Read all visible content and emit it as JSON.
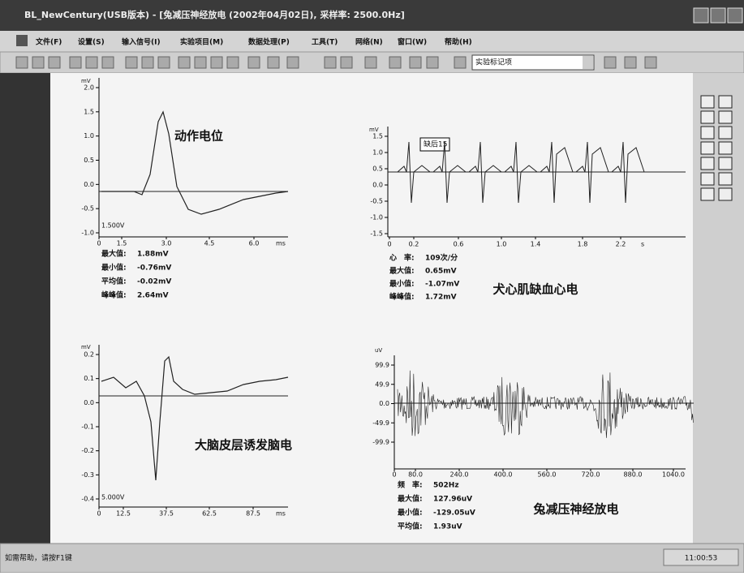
{
  "window": {
    "title": "BL_NewCentury(USB版本) - [兔减压神经放电 (2002年04月02日), 采样率: 2500.0Hz]"
  },
  "menu": [
    "文件(F)",
    "设置(S)",
    "输入信号(I)",
    "实验项目(M)",
    "数据处理(P)",
    "工具(T)",
    "网络(N)",
    "窗口(W)",
    "帮助(H)"
  ],
  "toolbar": {
    "dropdown": "实验标记项"
  },
  "panels": [
    {
      "title": "动作电位",
      "unit": "mV",
      "scale_label": "1.500V",
      "yticks": [
        "2.0",
        "1.5",
        "1.0",
        "0.5",
        "0.0",
        "-0.5",
        "-1.0"
      ],
      "xticks": [
        "0",
        "1.5",
        "3.0",
        "4.5",
        "6.0"
      ],
      "x_unit": "ms",
      "stats": [
        {
          "label": "最大值:",
          "value": "1.88mV"
        },
        {
          "label": "最小值:",
          "value": "-0.76mV"
        },
        {
          "label": "平均值:",
          "value": "-0.02mV"
        },
        {
          "label": "峰峰值:",
          "value": "2.64mV"
        }
      ]
    },
    {
      "title": "犬心肌缺血心电",
      "unit": "mV",
      "annotation": "缺后15",
      "yticks": [
        "1.5",
        "1.0",
        "0.5",
        "0.0",
        "-0.5",
        "-1.0",
        "-1.5"
      ],
      "xticks": [
        "0",
        "0.2",
        "0.6",
        "1.0",
        "1.4",
        "1.8",
        "2.2"
      ],
      "x_unit": "s",
      "stats": [
        {
          "label": "心　率:",
          "value": "109次/分"
        },
        {
          "label": "最大值:",
          "value": "0.65mV"
        },
        {
          "label": "最小值:",
          "value": "-1.07mV"
        },
        {
          "label": "峰峰值:",
          "value": "1.72mV"
        }
      ]
    },
    {
      "title": "大脑皮层诱发脑电",
      "unit": "mV",
      "scale_label": "5.000V",
      "yticks": [
        "0.2",
        "0.1",
        "0.0",
        "-0.1",
        "-0.2",
        "-0.3",
        "-0.4"
      ],
      "xticks": [
        "0",
        "12.5",
        "37.5",
        "62.5",
        "87.5"
      ],
      "x_unit": "ms"
    },
    {
      "title": "兔减压神经放电",
      "unit": "uV",
      "yticks": [
        "99.9",
        "49.9",
        "0.0",
        "-49.9",
        "-99.9"
      ],
      "xticks": [
        "0",
        "80.0",
        "240.0",
        "400.0",
        "560.0",
        "720.0",
        "880.0",
        "1040.0"
      ],
      "stats": [
        {
          "label": "频　率:",
          "value": "502Hz"
        },
        {
          "label": "最大值:",
          "value": "127.96uV"
        },
        {
          "label": "最小值:",
          "value": "-129.05uV"
        },
        {
          "label": "平均值:",
          "value": "1.93uV"
        }
      ]
    }
  ],
  "status": {
    "help": "如需帮助，请按F1键",
    "time": "11:00:53"
  }
}
